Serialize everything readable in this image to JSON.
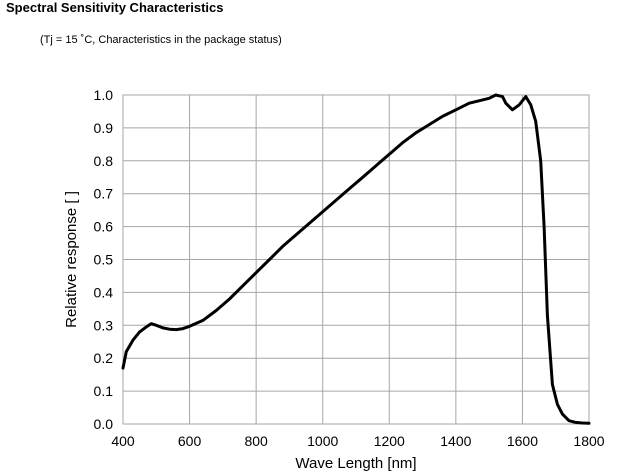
{
  "title": "Spectral Sensitivity Characteristics",
  "subtitle": "(Tj = 15 ˚C, Characteristics in the package status)",
  "chart_data": {
    "type": "line",
    "xlabel": "Wave Length [nm]",
    "ylabel": "Relative response [ ]",
    "xlim": [
      400,
      1800
    ],
    "ylim": [
      0,
      1.0
    ],
    "grid": true,
    "x_ticks": [
      "400",
      "600",
      "800",
      "1000",
      "1200",
      "1400",
      "1600",
      "1800"
    ],
    "y_ticks": [
      "0.0",
      "0.1",
      "0.2",
      "0.3",
      "0.4",
      "0.5",
      "0.6",
      "0.7",
      "0.8",
      "0.9",
      "1.0"
    ],
    "series": [
      {
        "color": "#000000",
        "x": [
          400,
          410,
          430,
          450,
          470,
          485,
          500,
          520,
          540,
          560,
          580,
          600,
          640,
          680,
          720,
          760,
          800,
          840,
          880,
          920,
          960,
          1000,
          1040,
          1080,
          1120,
          1160,
          1200,
          1240,
          1280,
          1320,
          1360,
          1400,
          1440,
          1480,
          1500,
          1520,
          1540,
          1550,
          1570,
          1590,
          1610,
          1625,
          1640,
          1655,
          1665,
          1675,
          1690,
          1705,
          1720,
          1740,
          1760,
          1780,
          1800
        ],
        "y": [
          0.17,
          0.22,
          0.255,
          0.28,
          0.295,
          0.305,
          0.3,
          0.292,
          0.288,
          0.287,
          0.29,
          0.297,
          0.315,
          0.345,
          0.38,
          0.42,
          0.46,
          0.5,
          0.54,
          0.575,
          0.61,
          0.645,
          0.68,
          0.715,
          0.75,
          0.785,
          0.82,
          0.855,
          0.885,
          0.91,
          0.935,
          0.955,
          0.975,
          0.985,
          0.99,
          1.0,
          0.995,
          0.975,
          0.955,
          0.97,
          0.995,
          0.97,
          0.92,
          0.8,
          0.6,
          0.33,
          0.12,
          0.06,
          0.03,
          0.01,
          0.005,
          0.003,
          0.002
        ]
      }
    ]
  }
}
